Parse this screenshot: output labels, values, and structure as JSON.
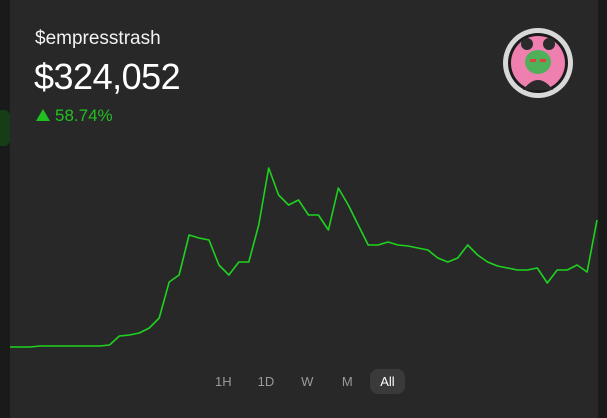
{
  "header": {
    "handle": "$empresstrash",
    "price": "$324,052",
    "change": "58.74%"
  },
  "chart_data": {
    "type": "line",
    "color": "#1fd21f",
    "ylim": [
      0,
      828000
    ],
    "values": [
      29900,
      29900,
      29900,
      32200,
      32200,
      32200,
      32200,
      32200,
      32200,
      32200,
      34500,
      55200,
      57500,
      62100,
      73600,
      96600,
      179400,
      195500,
      287500,
      280600,
      276000,
      218500,
      195500,
      225400,
      225400,
      310500,
      441600,
      379500,
      356500,
      368000,
      333500,
      333500,
      299000,
      395600,
      356500,
      310500,
      264500,
      264500,
      271400,
      264500,
      262200,
      257600,
      253000,
      234600,
      225400,
      234600,
      264500,
      241500,
      225400,
      216200,
      211600,
      207000,
      207000,
      211600,
      177100,
      207000,
      207000,
      218500,
      202400,
      322000
    ]
  },
  "tabs": [
    "1H",
    "1D",
    "W",
    "M",
    "All"
  ]
}
